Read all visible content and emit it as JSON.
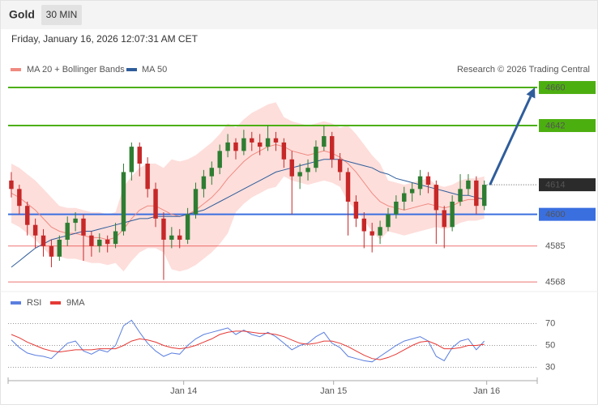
{
  "header": {
    "title": "Gold",
    "interval": "30 MIN",
    "timestamp": "Friday, January 16, 2026 12:07:31 AM CET"
  },
  "chart_data": [
    {
      "type": "candlestick",
      "source": "Research © 2026 Trading Central",
      "xlim": [
        -0.4,
        65.6
      ],
      "ylim": [
        4565,
        4665
      ],
      "up_color": "#2e7d32",
      "down_color": "#c62828",
      "candles": [
        [
          4616,
          4620,
          4608,
          4612
        ],
        [
          4612,
          4614,
          4600,
          4604
        ],
        [
          4604,
          4606,
          4590,
          4595
        ],
        [
          4595,
          4598,
          4584,
          4590
        ],
        [
          4590,
          4593,
          4580,
          4585
        ],
        [
          4585,
          4588,
          4575,
          4580
        ],
        [
          4580,
          4590,
          4578,
          4588
        ],
        [
          4588,
          4599,
          4585,
          4596
        ],
        [
          4596,
          4601,
          4592,
          4598
        ],
        [
          4598,
          4600,
          4578,
          4590
        ],
        [
          4590,
          4592,
          4580,
          4585
        ],
        [
          4585,
          4591,
          4582,
          4588
        ],
        [
          4588,
          4590,
          4582,
          4586
        ],
        [
          4586,
          4596,
          4584,
          4592
        ],
        [
          4592,
          4624,
          4590,
          4620
        ],
        [
          4620,
          4634,
          4616,
          4632
        ],
        [
          4632,
          4634,
          4618,
          4624
        ],
        [
          4624,
          4627,
          4608,
          4612
        ],
        [
          4612,
          4615,
          4594,
          4598
        ],
        [
          4598,
          4601,
          4569,
          4588
        ],
        [
          4588,
          4594,
          4584,
          4590
        ],
        [
          4590,
          4593,
          4584,
          4588
        ],
        [
          4588,
          4603,
          4586,
          4600
        ],
        [
          4600,
          4615,
          4598,
          4612
        ],
        [
          4612,
          4621,
          4608,
          4618
        ],
        [
          4618,
          4625,
          4614,
          4622
        ],
        [
          4622,
          4633,
          4619,
          4630
        ],
        [
          4630,
          4638,
          4627,
          4634
        ],
        [
          4634,
          4636,
          4626,
          4630
        ],
        [
          4630,
          4640,
          4628,
          4636
        ],
        [
          4636,
          4639,
          4630,
          4634
        ],
        [
          4634,
          4638,
          4628,
          4632
        ],
        [
          4632,
          4642,
          4630,
          4636
        ],
        [
          4636,
          4639,
          4630,
          4634
        ],
        [
          4634,
          4636,
          4622,
          4626
        ],
        [
          4626,
          4630,
          4600,
          4618
        ],
        [
          4618,
          4624,
          4612,
          4620
        ],
        [
          4620,
          4626,
          4616,
          4622
        ],
        [
          4622,
          4635,
          4620,
          4632
        ],
        [
          4632,
          4642,
          4630,
          4637
        ],
        [
          4637,
          4639,
          4622,
          4626
        ],
        [
          4626,
          4629,
          4616,
          4620
        ],
        [
          4620,
          4622,
          4590,
          4606
        ],
        [
          4606,
          4609,
          4594,
          4598
        ],
        [
          4598,
          4601,
          4584,
          4592
        ],
        [
          4592,
          4596,
          4582,
          4590
        ],
        [
          4590,
          4597,
          4586,
          4594
        ],
        [
          4594,
          4603,
          4592,
          4600
        ],
        [
          4600,
          4609,
          4598,
          4606
        ],
        [
          4606,
          4613,
          4602,
          4610
        ],
        [
          4610,
          4615,
          4606,
          4612
        ],
        [
          4612,
          4621,
          4609,
          4618
        ],
        [
          4618,
          4620,
          4610,
          4614
        ],
        [
          4614,
          4616,
          4586,
          4602
        ],
        [
          4602,
          4604,
          4584,
          4594
        ],
        [
          4594,
          4609,
          4592,
          4606
        ],
        [
          4606,
          4619,
          4604,
          4612
        ],
        [
          4612,
          4619,
          4609,
          4616
        ],
        [
          4616,
          4618,
          4600,
          4604
        ],
        [
          4604,
          4616,
          4602,
          4614
        ]
      ],
      "series": [
        {
          "name": "MA 20 + Bollinger Bands",
          "color": "#f08a80",
          "band_color": "#fdd8d5",
          "values": [
            4610,
            4608,
            4605,
            4602,
            4598,
            4594,
            4592,
            4591,
            4591,
            4590,
            4589,
            4589,
            4588,
            4589,
            4593,
            4598,
            4602,
            4604,
            4604,
            4602,
            4600,
            4599,
            4600,
            4602,
            4605,
            4608,
            4612,
            4617,
            4621,
            4625,
            4628,
            4630,
            4632,
            4633,
            4632,
            4630,
            4629,
            4628,
            4629,
            4630,
            4629,
            4627,
            4624,
            4620,
            4615,
            4610,
            4606,
            4604,
            4603,
            4602,
            4603,
            4604,
            4605,
            4604,
            4603,
            4604,
            4606,
            4607,
            4607,
            4608
          ],
          "upper": [
            4624,
            4622,
            4619,
            4616,
            4612,
            4608,
            4604,
            4603,
            4603,
            4602,
            4601,
            4601,
            4600,
            4601,
            4613,
            4618,
            4622,
            4624,
            4624,
            4622,
            4626,
            4625,
            4626,
            4628,
            4631,
            4634,
            4638,
            4643,
            4641,
            4645,
            4648,
            4650,
            4652,
            4653,
            4646,
            4644,
            4643,
            4642,
            4643,
            4644,
            4643,
            4641,
            4642,
            4638,
            4633,
            4628,
            4624,
            4616,
            4615,
            4614,
            4615,
            4616,
            4617,
            4614,
            4613,
            4614,
            4616,
            4617,
            4617,
            4618
          ],
          "lower": [
            4596,
            4594,
            4591,
            4588,
            4584,
            4580,
            4580,
            4579,
            4579,
            4578,
            4577,
            4577,
            4576,
            4577,
            4573,
            4578,
            4582,
            4584,
            4584,
            4582,
            4574,
            4573,
            4574,
            4576,
            4579,
            4582,
            4586,
            4591,
            4601,
            4605,
            4608,
            4610,
            4612,
            4613,
            4618,
            4616,
            4615,
            4614,
            4615,
            4616,
            4615,
            4613,
            4606,
            4602,
            4597,
            4592,
            4588,
            4592,
            4591,
            4590,
            4591,
            4592,
            4593,
            4594,
            4593,
            4594,
            4596,
            4597,
            4597,
            4598
          ]
        },
        {
          "name": "MA 50",
          "color": "#2f5d9b",
          "values": [
            4575,
            4578,
            4581,
            4584,
            4586,
            4588,
            4589,
            4590,
            4591,
            4592,
            4592,
            4593,
            4594,
            4595,
            4596,
            4597,
            4598,
            4598,
            4599,
            4599,
            4599,
            4599,
            4600,
            4601,
            4602,
            4604,
            4606,
            4608,
            4610,
            4612,
            4614,
            4616,
            4618,
            4620,
            4621,
            4622,
            4623,
            4624,
            4625,
            4626,
            4626,
            4626,
            4625,
            4624,
            4623,
            4622,
            4620,
            4619,
            4617,
            4616,
            4615,
            4614,
            4613,
            4612,
            4611,
            4610,
            4609,
            4609,
            4608,
            4607
          ]
        }
      ],
      "levels": [
        {
          "value": 4660,
          "color": "#4caf10",
          "box": true
        },
        {
          "value": 4642,
          "color": "#4caf10",
          "box": true
        },
        {
          "value": 4600,
          "color": "#3a6fe0",
          "box": true
        },
        {
          "value": 4585,
          "color": "#e53935",
          "box": false
        },
        {
          "value": 4568,
          "color": "#e53935",
          "box": false
        }
      ],
      "current_price": 4614,
      "current_color": "#2b2b2b",
      "projection_color": "#2f5d9b"
    },
    {
      "type": "line",
      "xlim": [
        -0.4,
        65.6
      ],
      "ylim": [
        20,
        80
      ],
      "yticks": [
        30,
        50,
        70
      ],
      "grid": true,
      "xticks": [
        {
          "value": 21.5,
          "label": "Jan 14"
        },
        {
          "value": 40.2,
          "label": "Jan 15"
        },
        {
          "value": 59.3,
          "label": "Jan 16"
        }
      ],
      "series": [
        {
          "name": "RSI",
          "color": "#5b7fe0",
          "values": [
            55,
            48,
            43,
            41,
            40,
            38,
            45,
            52,
            54,
            45,
            42,
            46,
            44,
            50,
            68,
            73,
            62,
            52,
            45,
            40,
            43,
            42,
            50,
            56,
            60,
            62,
            64,
            66,
            60,
            64,
            60,
            58,
            62,
            58,
            52,
            46,
            50,
            52,
            58,
            62,
            52,
            48,
            40,
            38,
            36,
            35,
            40,
            45,
            50,
            54,
            56,
            58,
            54,
            40,
            36,
            48,
            54,
            56,
            46,
            54
          ]
        },
        {
          "name": "9MA",
          "color": "#e53935",
          "values": [
            60,
            57,
            53,
            50,
            47,
            45,
            44,
            45,
            46,
            46,
            46,
            47,
            47,
            47,
            50,
            54,
            56,
            55,
            53,
            50,
            48,
            47,
            48,
            50,
            53,
            56,
            60,
            62,
            63,
            63,
            62,
            61,
            61,
            60,
            58,
            55,
            52,
            51,
            52,
            54,
            54,
            52,
            49,
            45,
            41,
            38,
            37,
            39,
            42,
            46,
            50,
            53,
            54,
            51,
            47,
            47,
            48,
            50,
            50,
            51
          ]
        }
      ]
    }
  ]
}
